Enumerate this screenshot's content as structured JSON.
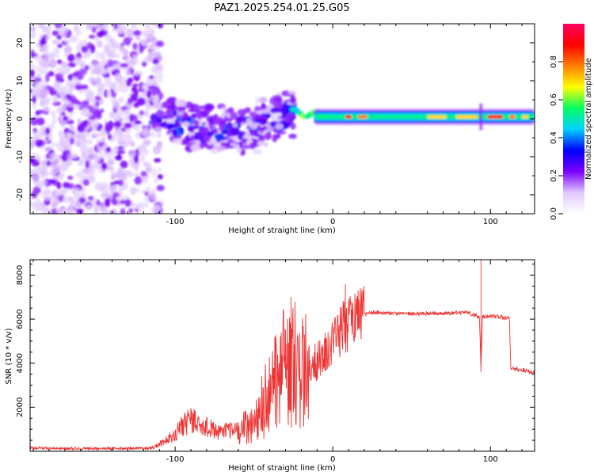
{
  "title": "PAZ1.2025.254.01.25.G05",
  "chart_data": [
    {
      "type": "heatmap",
      "name": "spectrogram",
      "xlabel": "Height of straight line (km)",
      "ylabel": "Frequency (Hz)",
      "xlim": [
        -192,
        128
      ],
      "ylim": [
        -25,
        25
      ],
      "xticks": [
        -100,
        0,
        100
      ],
      "yticks": [
        -20,
        -10,
        0,
        10,
        20
      ],
      "colorbar": {
        "label": "Normalized spectral amplitude",
        "range": [
          0,
          1
        ],
        "ticks": [
          "0.0",
          "0.2",
          "0.4",
          "0.6",
          "0.8"
        ],
        "colormap": [
          "#ffffff",
          "#e0c8ff",
          "#7a00ff",
          "#0000ff",
          "#00d0ff",
          "#00ff60",
          "#ffff00",
          "#ff8000",
          "#ff0000",
          "#ff0060"
        ]
      },
      "description_regions": [
        {
          "x_range": [
            -192,
            -115
          ],
          "freq_range": [
            -25,
            25
          ],
          "amplitude": 0.05,
          "pattern": "noise"
        },
        {
          "x_range": [
            -115,
            -25
          ],
          "freq_center": [
            2,
            -6
          ],
          "freq_spread": 6,
          "amplitude": 0.25,
          "pattern": "scattered"
        },
        {
          "x_range": [
            -25,
            128
          ],
          "freq_center": 0.5,
          "amplitude": 0.9,
          "pattern": "tone"
        }
      ]
    },
    {
      "type": "line",
      "name": "snr",
      "xlabel": "Height of straight line (km)",
      "ylabel": "SNR (10 * v/v)",
      "xlim": [
        -192,
        128
      ],
      "ylim": [
        0,
        8700
      ],
      "xticks": [
        -100,
        0,
        100
      ],
      "yticks": [
        2000,
        4000,
        6000,
        8000
      ],
      "color": "#ee3333",
      "series": [
        {
          "name": "SNR",
          "x": [
            -192,
            -160,
            -130,
            -115,
            -105,
            -100,
            -95,
            -90,
            -85,
            -80,
            -75,
            -70,
            -65,
            -60,
            -55,
            -50,
            -45,
            -40,
            -35,
            -30,
            -25,
            -20,
            -15,
            -10,
            -5,
            0,
            5,
            10,
            15,
            20,
            25,
            30,
            40,
            50,
            60,
            70,
            80,
            85,
            90,
            93,
            94,
            95,
            100,
            105,
            110,
            112,
            113,
            120,
            128
          ],
          "y": [
            150,
            120,
            130,
            150,
            500,
            800,
            1200,
            1500,
            1100,
            1100,
            900,
            800,
            1000,
            900,
            1100,
            1300,
            2000,
            2800,
            3400,
            4000,
            4200,
            3600,
            4000,
            4100,
            4600,
            5000,
            5500,
            5800,
            6000,
            6200,
            6300,
            6300,
            6250,
            6250,
            6250,
            6250,
            6300,
            6300,
            6200,
            6100,
            3800,
            6100,
            6150,
            6100,
            6050,
            6050,
            3750,
            3700,
            3550
          ]
        }
      ],
      "spikes": [
        {
          "x": 8,
          "y": 7600
        },
        {
          "x": 94,
          "y": 8700
        },
        {
          "x": 94,
          "y": 3600
        },
        {
          "x": -30,
          "y": 5500
        }
      ]
    }
  ]
}
